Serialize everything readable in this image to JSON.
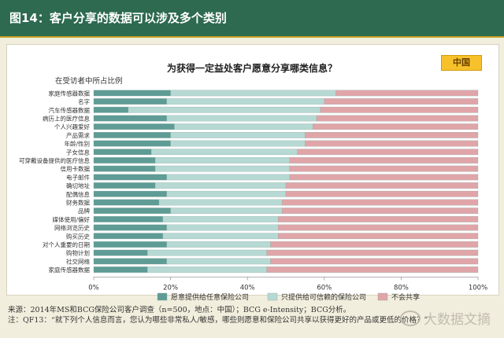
{
  "header": {
    "title": "图14：客户分享的数据可以涉及多个类别"
  },
  "tag": "中国",
  "footer": {
    "source": "来源：2014年MS和BCG保险公司客户调查（n=500，地点：中国）；BCG e-Intensity；BCG分析。",
    "note": "注：QF13：“就下列个人信息而言，您认为哪些非常私人/敏感，哪些则愿意和保险公司共享以获得更好的产品或更低的价格？”"
  },
  "watermark": "大数据文摘",
  "colors": {
    "series1": "#5e9c95",
    "series2": "#b7d9d3",
    "series3": "#e0a5a8",
    "header": "#2d6a4f"
  },
  "chart_data": {
    "type": "bar",
    "orientation": "horizontal",
    "stacked": true,
    "title": "为获得一定益处客户愿意分享哪类信息？",
    "ylabel": "在受访者中所占比例",
    "categories": [
      "家庭传感器数据",
      "名字",
      "汽车传感器数据",
      "病历上的医疗信息",
      "个人兴趣爱好",
      "产品需求",
      "年龄/性别",
      "子女信息",
      "可穿戴设备提供的医疗信息",
      "信用卡数据",
      "电子邮件",
      "确切地址",
      "配偶信息",
      "财务数据",
      "品牌",
      "媒体使用/偏好",
      "网络浏览历史",
      "购买历史",
      "对个人重要的日期",
      "购物计划",
      "社交网络",
      "家庭传感器数据"
    ],
    "series": [
      {
        "name": "愿意提供给任意保险公司",
        "values": [
          20,
          19,
          9,
          19,
          21,
          20,
          20,
          15,
          16,
          16,
          19,
          16,
          19,
          17,
          20,
          18,
          19,
          18,
          19,
          14,
          19,
          14
        ]
      },
      {
        "name": "只提供给可信赖的保险公司",
        "values": [
          43,
          41,
          50,
          39,
          36,
          35,
          35,
          38,
          35,
          35,
          32,
          34,
          31,
          32,
          29,
          30,
          29,
          30,
          27,
          31,
          27,
          31
        ]
      },
      {
        "name": "不会共享",
        "values": [
          37,
          40,
          41,
          42,
          43,
          45,
          45,
          47,
          49,
          49,
          49,
          50,
          50,
          51,
          51,
          52,
          52,
          52,
          54,
          55,
          54,
          55
        ]
      }
    ],
    "xlim": [
      0,
      100
    ],
    "xticks": [
      "0%",
      "20%",
      "40%",
      "60%",
      "80%",
      "100%"
    ],
    "legend": "bottom",
    "grid": false
  }
}
